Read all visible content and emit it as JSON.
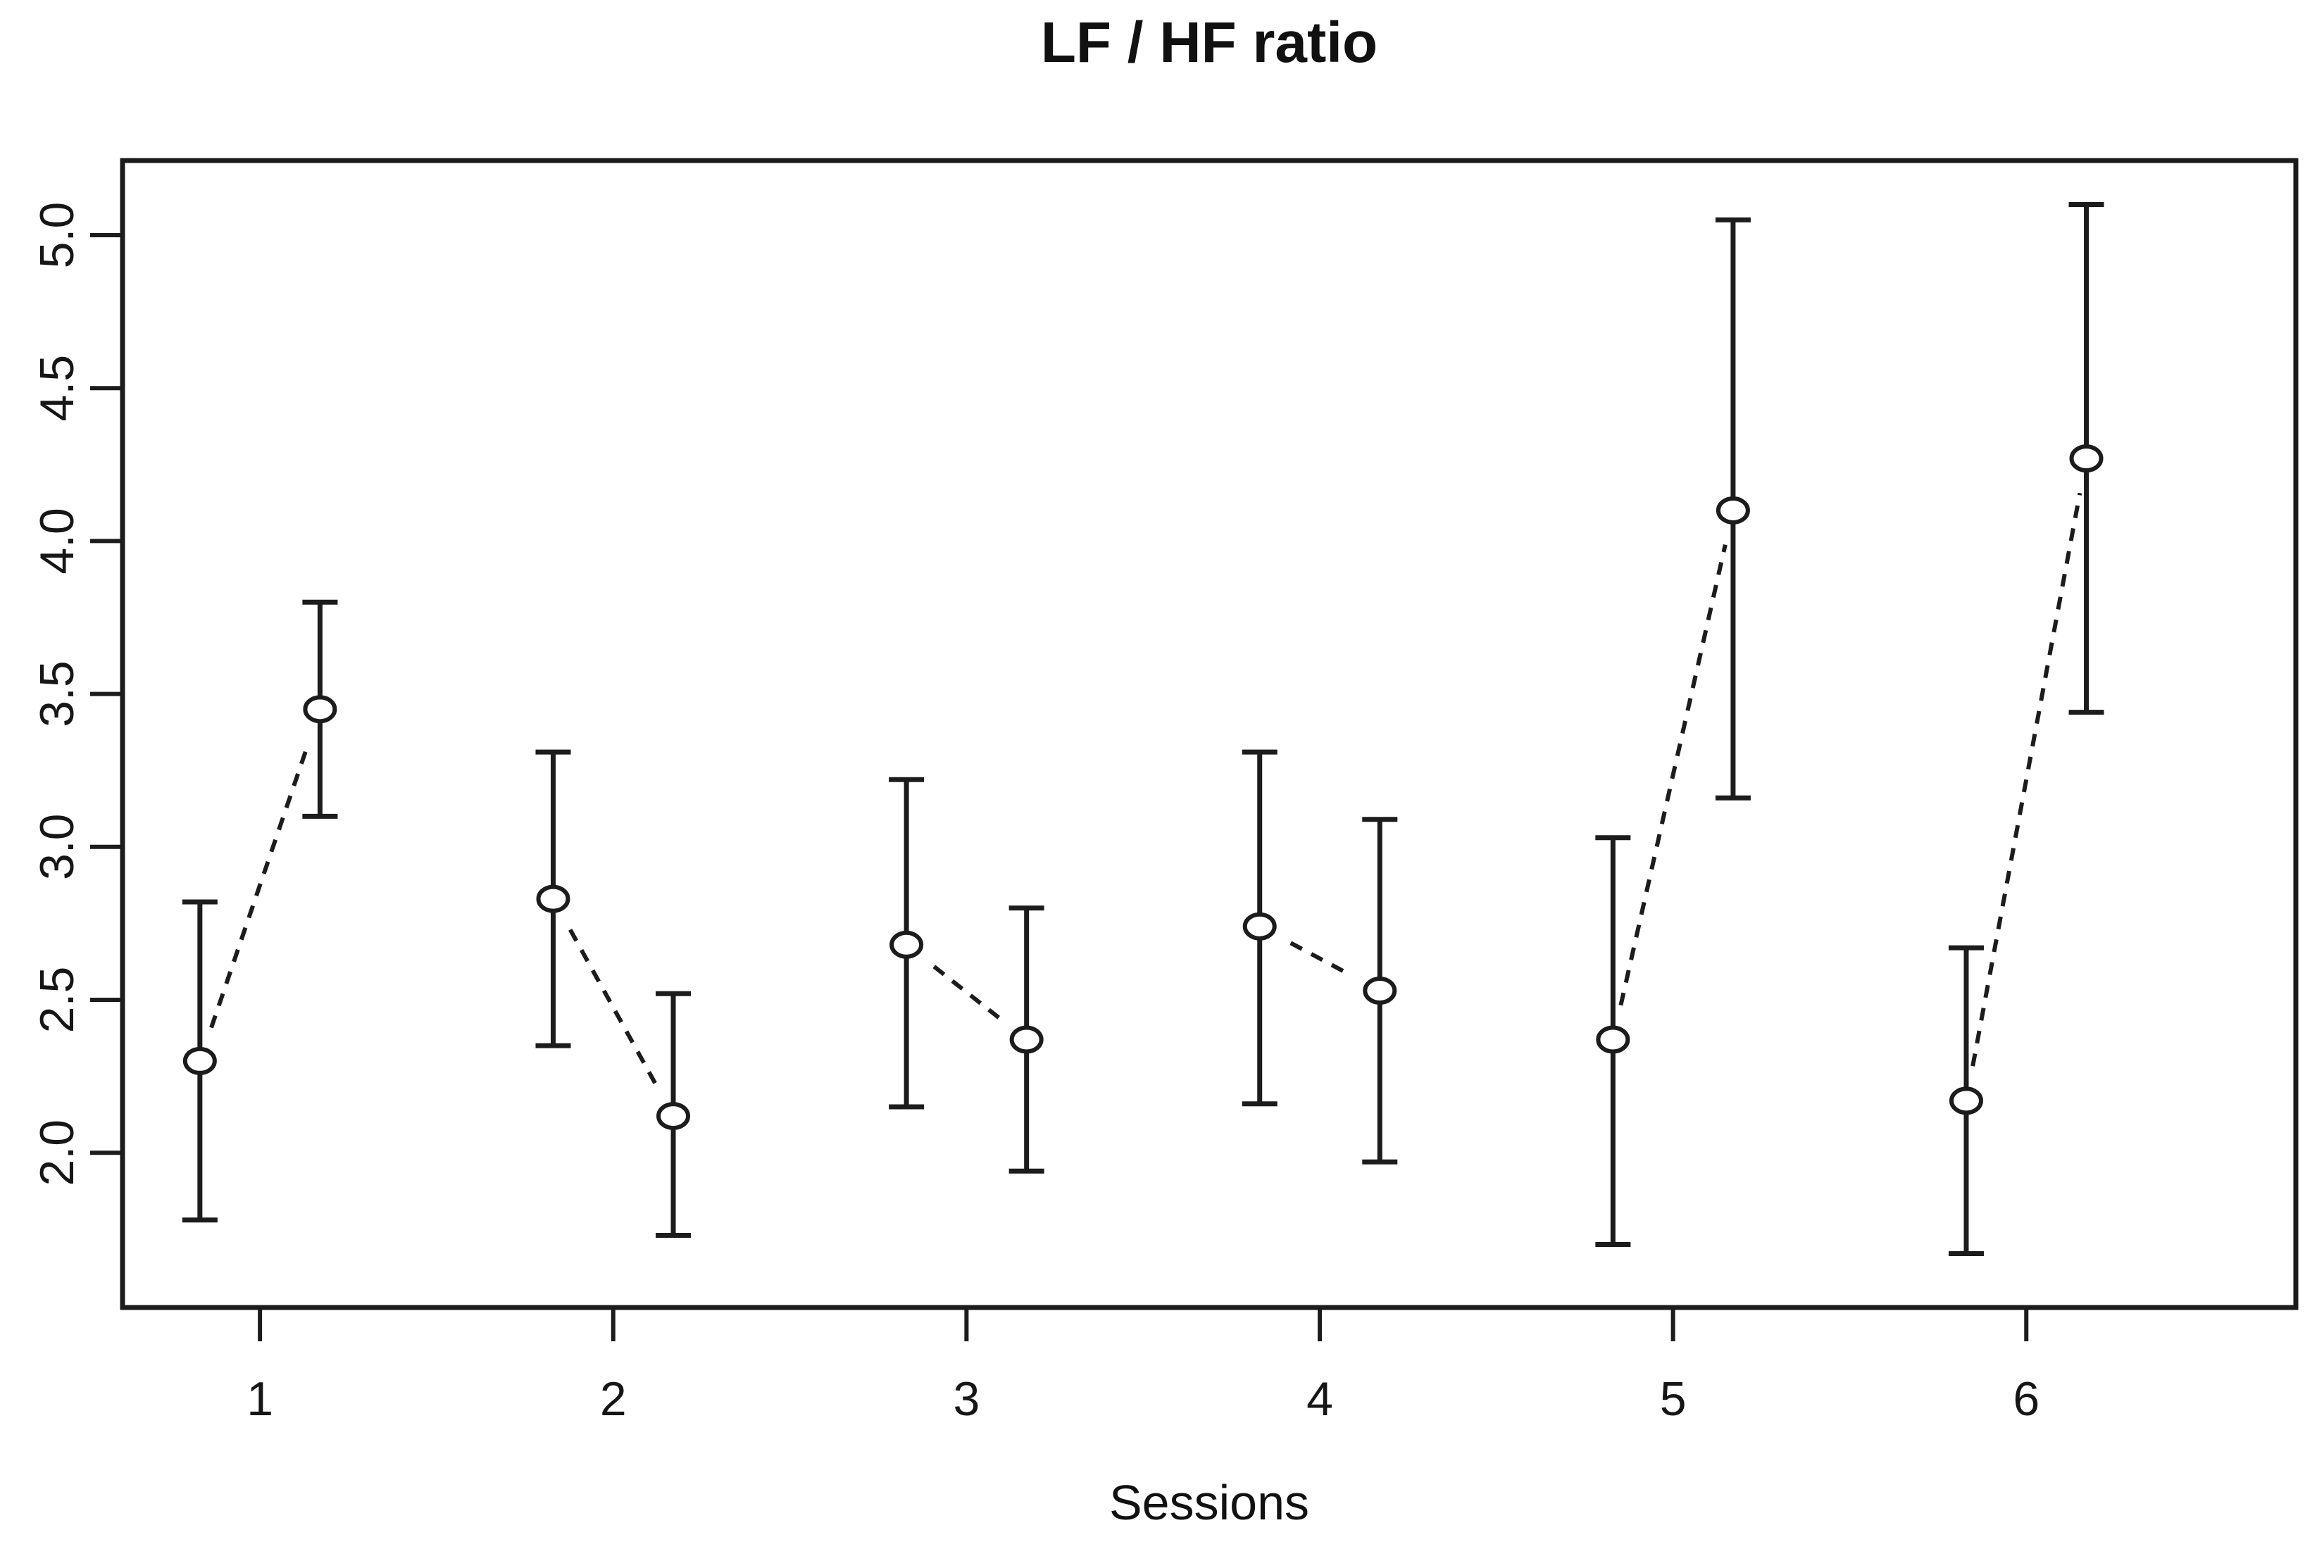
{
  "chart_data": {
    "type": "line",
    "title": "LF / HF ratio",
    "xlabel": "Sessions",
    "ylabel": "",
    "grid": false,
    "legend": "none",
    "background": "#ffffff",
    "stroke_color": "#1c1c1c",
    "marker": "open-circle",
    "marker_fill": "#ffffff",
    "connector_style": "dashed",
    "error_bars": true,
    "x_categories": [
      "1",
      "2",
      "3",
      "4",
      "5",
      "6"
    ],
    "x_tick_values": [
      1,
      2,
      3,
      4,
      5,
      6
    ],
    "y_tick_labels": [
      "2.0",
      "2.5",
      "3.0",
      "3.5",
      "4.0",
      "4.5",
      "5.0"
    ],
    "y_tick_values": [
      2.0,
      2.5,
      3.0,
      3.5,
      4.0,
      4.5,
      5.0
    ],
    "xlim": [
      0.611,
      6.763
    ],
    "ylim": [
      1.494,
      5.244
    ],
    "pair_offset": 0.17,
    "series": [
      {
        "name": "left-point-of-session",
        "x_offset": -0.17,
        "means": [
          2.3,
          2.83,
          2.68,
          2.74,
          2.37,
          2.17
        ],
        "upper": [
          2.82,
          3.31,
          3.22,
          3.31,
          3.03,
          2.67
        ],
        "lower": [
          1.78,
          2.35,
          2.15,
          2.16,
          1.7,
          1.67
        ]
      },
      {
        "name": "right-point-of-session",
        "x_offset": 0.17,
        "means": [
          3.45,
          2.12,
          2.37,
          2.53,
          4.1,
          4.27
        ],
        "upper": [
          3.8,
          2.52,
          2.8,
          3.09,
          5.05,
          5.1
        ],
        "lower": [
          3.1,
          1.73,
          1.94,
          1.97,
          3.16,
          3.44
        ]
      }
    ],
    "pairs_connected": true
  }
}
